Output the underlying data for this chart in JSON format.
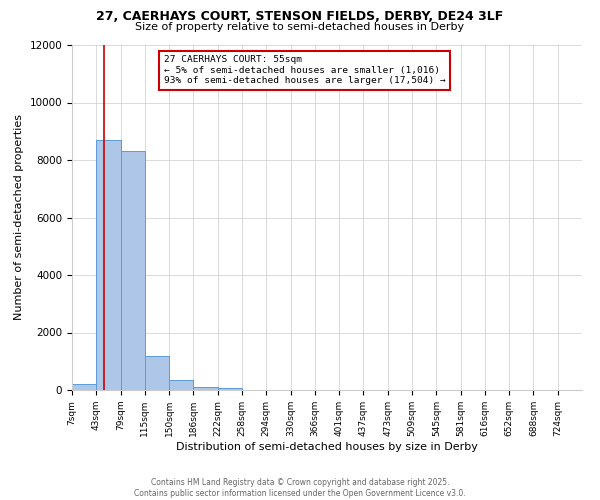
{
  "title_line1": "27, CAERHAYS COURT, STENSON FIELDS, DERBY, DE24 3LF",
  "title_line2": "Size of property relative to semi-detached houses in Derby",
  "xlabel": "Distribution of semi-detached houses by size in Derby",
  "ylabel": "Number of semi-detached properties",
  "bin_labels": [
    "7sqm",
    "43sqm",
    "79sqm",
    "115sqm",
    "150sqm",
    "186sqm",
    "222sqm",
    "258sqm",
    "294sqm",
    "330sqm",
    "366sqm",
    "401sqm",
    "437sqm",
    "473sqm",
    "509sqm",
    "545sqm",
    "581sqm",
    "616sqm",
    "652sqm",
    "688sqm",
    "724sqm"
  ],
  "bar_heights": [
    200,
    8700,
    8300,
    1200,
    350,
    100,
    80,
    0,
    0,
    0,
    0,
    0,
    0,
    0,
    0,
    0,
    0,
    0,
    0,
    0,
    0
  ],
  "bar_color": "#aec6e8",
  "bar_edge_color": "#5b9bd5",
  "property_line_x": 1.333,
  "property_line_color": "#cc0000",
  "annotation_title": "27 CAERHAYS COURT: 55sqm",
  "annotation_line2": "← 5% of semi-detached houses are smaller (1,016)",
  "annotation_line3": "93% of semi-detached houses are larger (17,504) →",
  "annotation_box_color": "#cc0000",
  "ylim": [
    0,
    12000
  ],
  "yticks": [
    0,
    2000,
    4000,
    6000,
    8000,
    10000,
    12000
  ],
  "footer_line1": "Contains HM Land Registry data © Crown copyright and database right 2025.",
  "footer_line2": "Contains public sector information licensed under the Open Government Licence v3.0.",
  "background_color": "#ffffff",
  "grid_color": "#cccccc"
}
